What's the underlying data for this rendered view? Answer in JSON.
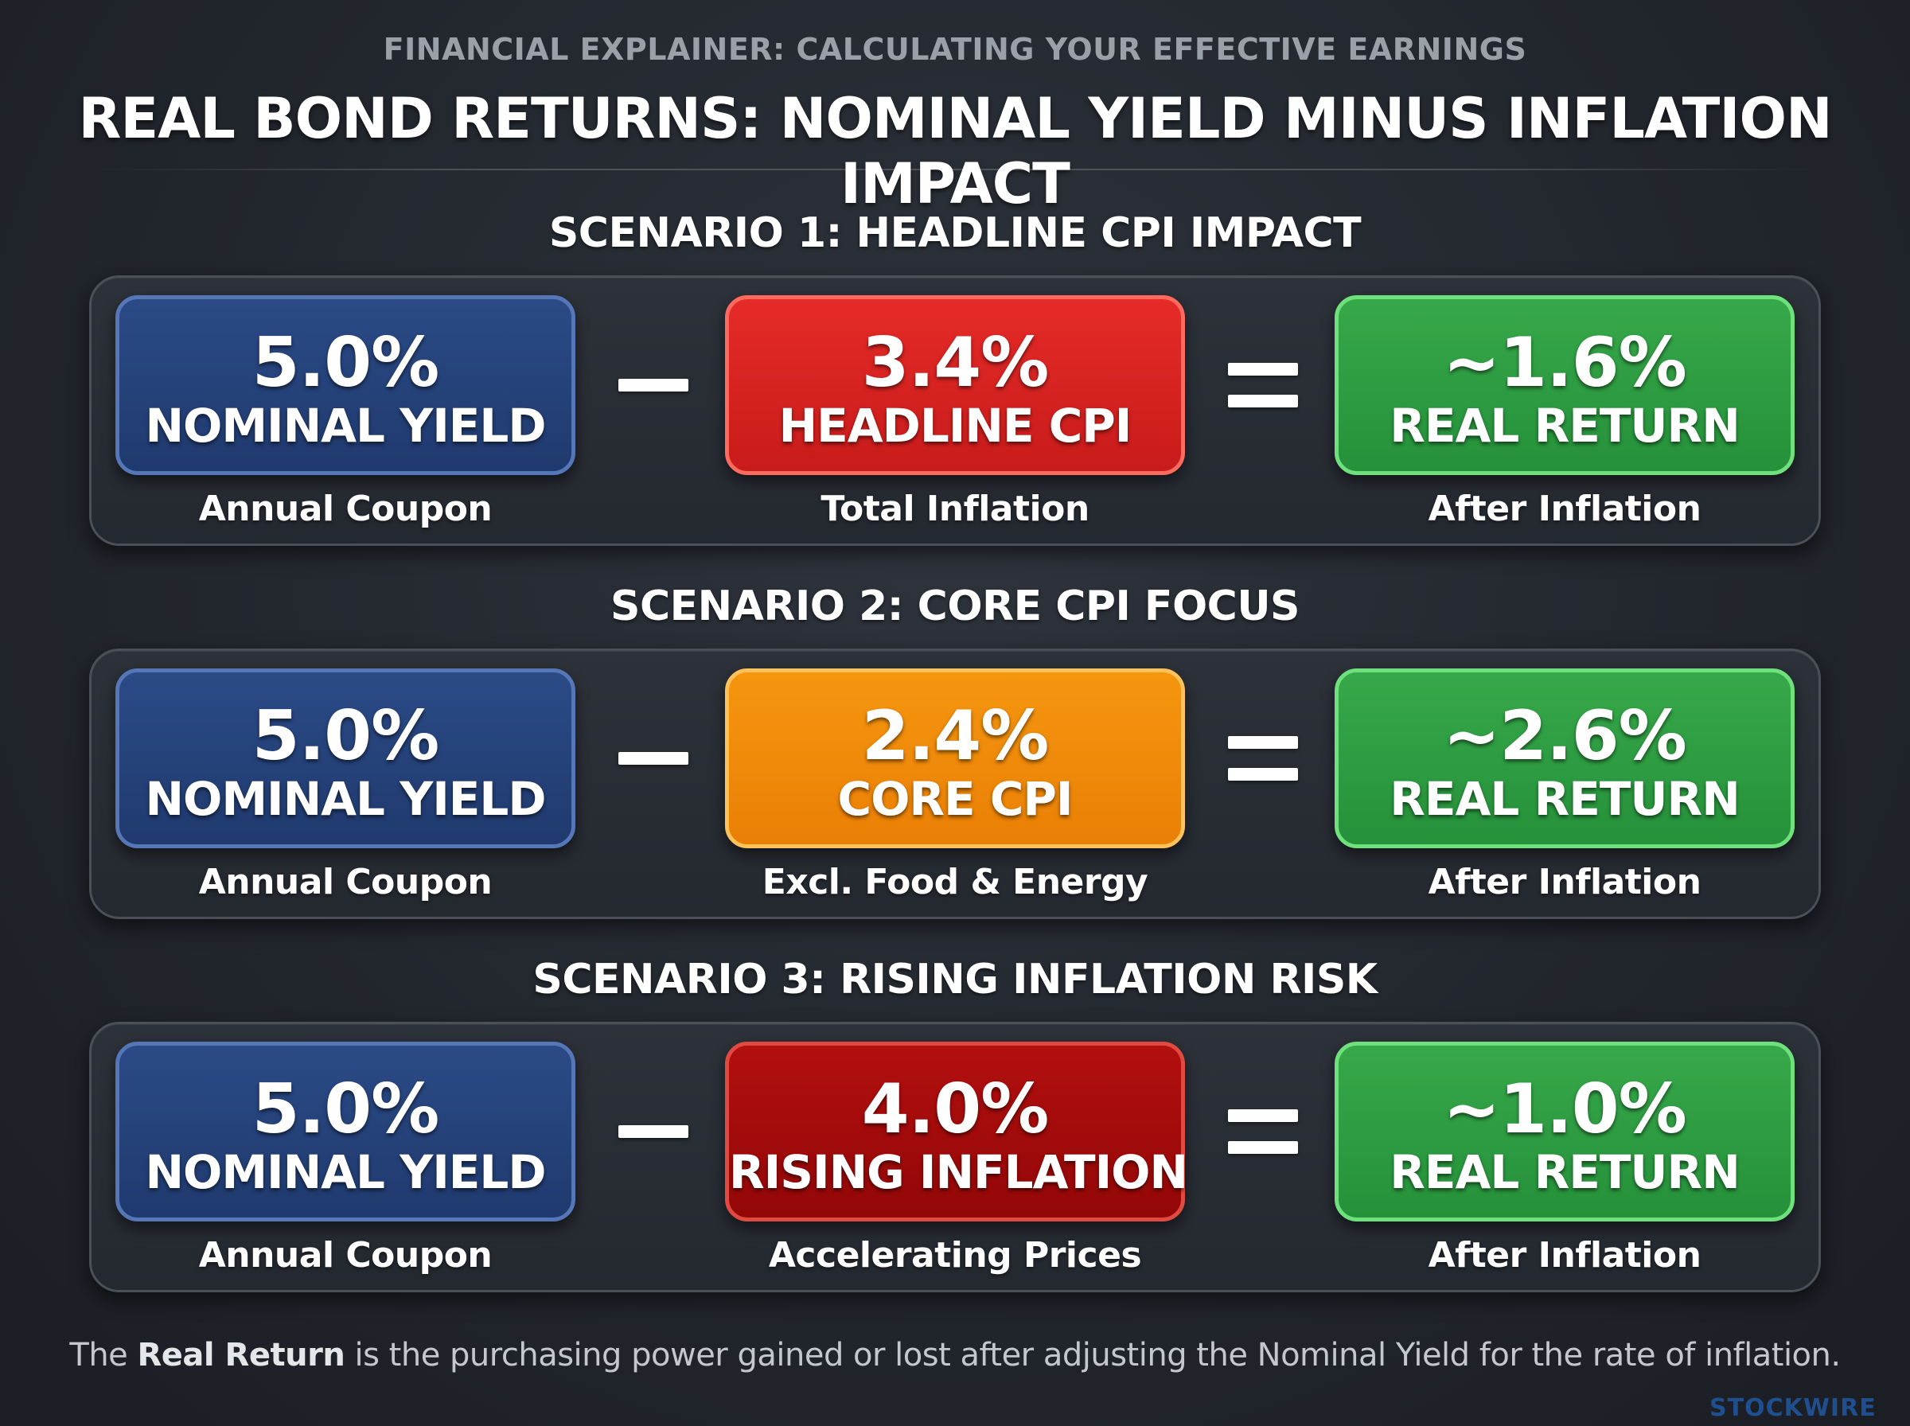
{
  "header": {
    "kicker": "FINANCIAL EXPLAINER: CALCULATING YOUR EFFECTIVE EARNINGS",
    "title": "REAL BOND RETURNS: NOMINAL YIELD MINUS INFLATION IMPACT"
  },
  "scenarios": [
    {
      "heading": "SCENARIO 1: HEADLINE CPI IMPACT",
      "yield": {
        "value": "5.0%",
        "label": "NOMINAL YIELD",
        "caption": "Annual Coupon"
      },
      "inflation": {
        "value": "3.4%",
        "label": "HEADLINE CPI",
        "caption": "Total Inflation"
      },
      "result": {
        "value": "~1.6%",
        "label": "REAL RETURN",
        "caption": "After Inflation"
      }
    },
    {
      "heading": "SCENARIO 2: CORE CPI FOCUS",
      "yield": {
        "value": "5.0%",
        "label": "NOMINAL YIELD",
        "caption": "Annual Coupon"
      },
      "inflation": {
        "value": "2.4%",
        "label": "CORE CPI",
        "caption": "Excl. Food & Energy"
      },
      "result": {
        "value": "~2.6%",
        "label": "REAL RETURN",
        "caption": "After Inflation"
      }
    },
    {
      "heading": "SCENARIO 3: RISING INFLATION RISK",
      "yield": {
        "value": "5.0%",
        "label": "NOMINAL YIELD",
        "caption": "Annual Coupon"
      },
      "inflation": {
        "value": "4.0%",
        "label": "RISING INFLATION",
        "caption": "Accelerating Prices"
      },
      "result": {
        "value": "~1.0%",
        "label": "REAL RETURN",
        "caption": "After Inflation"
      }
    }
  ],
  "footer": {
    "prefix": "The ",
    "bold": "Real Return",
    "suffix": " is the purchasing power gained or lost after adjusting the Nominal Yield for the rate of inflation."
  },
  "watermark": "STOCKWIRE",
  "colors": {
    "nominal_yield": "#1f3a6e",
    "headline_cpi": "#d8211f",
    "core_cpi": "#f08a0a",
    "rising_inflation": "#a00b0b",
    "real_return": "#2e9e43",
    "background": "#23272e"
  },
  "icons": {
    "minus": "minus-operator-icon",
    "equals": "equals-operator-icon"
  }
}
